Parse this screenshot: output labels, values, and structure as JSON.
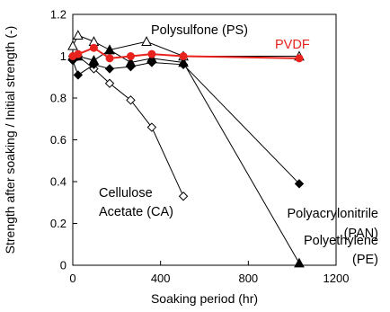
{
  "chart_data": {
    "type": "line",
    "title": "",
    "xlabel": "Soaking period (hr)",
    "ylabel": "Strength after soaking / Initial strength (-)",
    "xlim": [
      0,
      1200
    ],
    "ylim": [
      0,
      1.2
    ],
    "xticks": [
      0,
      400,
      800,
      1200
    ],
    "yticks": [
      0,
      0.2,
      0.4,
      0.6,
      0.8,
      1,
      1.2
    ],
    "xtick_labels": [
      "0",
      "400",
      "800",
      "1200"
    ],
    "ytick_labels": [
      "0",
      "0.2",
      "0.4",
      "0.6",
      "0.8",
      "1",
      "1.2"
    ],
    "grid": false,
    "legend": "none",
    "series": [
      {
        "name": "Polysulfone (PS)",
        "label_lines": [
          "Polysulfone (PS)"
        ],
        "marker": "triangle-open",
        "color": "#000000",
        "x": [
          0,
          24,
          96,
          168,
          336,
          504,
          1032
        ],
        "y": [
          1.05,
          1.1,
          1.07,
          1.03,
          1.07,
          1.0,
          1.0
        ]
      },
      {
        "name": "PVDF",
        "label_lines": [
          "PVDF"
        ],
        "marker": "circle-filled",
        "color": "#e8231d",
        "x": [
          0,
          24,
          96,
          168,
          264,
          360,
          504,
          1032
        ],
        "y": [
          1.0,
          1.01,
          1.04,
          0.99,
          1.0,
          1.01,
          1.0,
          0.99
        ]
      },
      {
        "name": "Polyacrylonitrile (PAN)",
        "label_lines": [
          "Polyacrylonitrile",
          "(PAN)"
        ],
        "marker": "diamond-filled",
        "color": "#000000",
        "x": [
          0,
          24,
          96,
          168,
          264,
          360,
          504,
          1032
        ],
        "y": [
          0.98,
          0.91,
          0.96,
          0.94,
          0.95,
          0.97,
          0.96,
          0.39
        ]
      },
      {
        "name": "Polyethylene (PE)",
        "label_lines": [
          "Polyethylene",
          "(PE)"
        ],
        "marker": "triangle-filled",
        "color": "#000000",
        "x": [
          0,
          24,
          96,
          168,
          264,
          360,
          504,
          1032
        ],
        "y": [
          1.0,
          1.0,
          0.98,
          1.03,
          0.97,
          0.99,
          0.97,
          0.01
        ]
      },
      {
        "name": "Cellulose Acetate (CA)",
        "label_lines": [
          "Cellulose",
          "Acetate (CA)"
        ],
        "marker": "diamond-open",
        "color": "#000000",
        "x": [
          0,
          24,
          96,
          168,
          264,
          360,
          504
        ],
        "y": [
          1.0,
          1.0,
          0.94,
          0.87,
          0.79,
          0.66,
          0.33
        ]
      }
    ]
  }
}
